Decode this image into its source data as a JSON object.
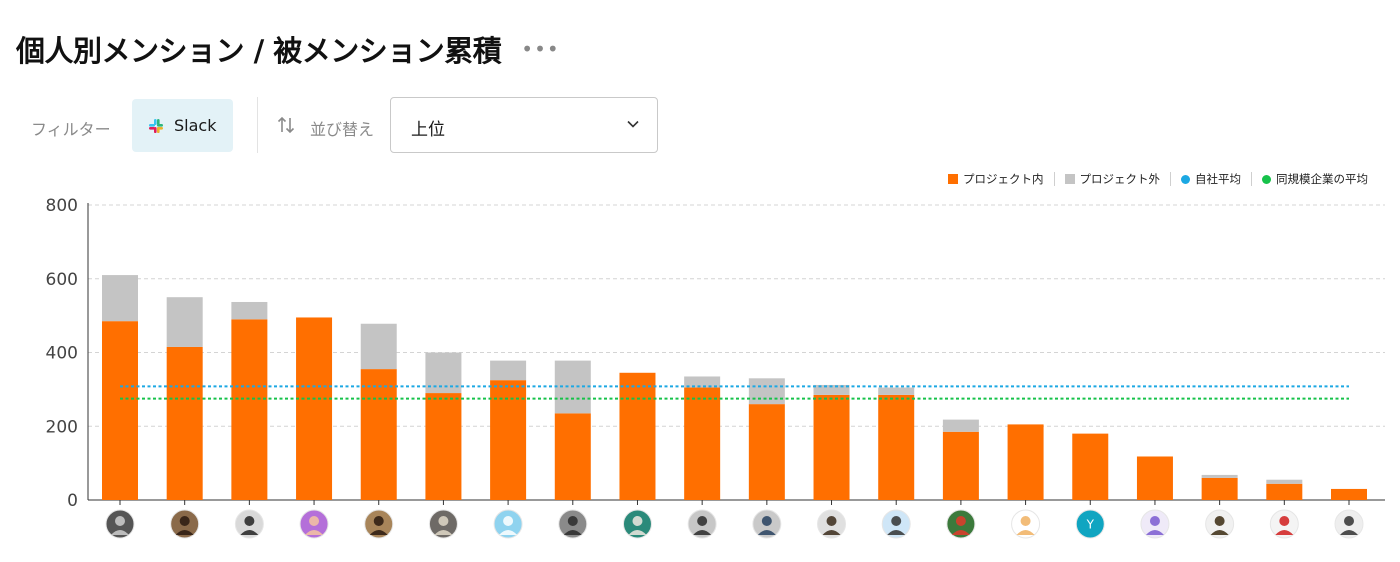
{
  "header": {
    "title": "個人別メンション / 被メンション累積",
    "more_label": "•••"
  },
  "filter": {
    "label": "フィルター",
    "chip_label": "Slack",
    "sort_label": "並び替え",
    "sort_value": "上位"
  },
  "colors": {
    "inside": "#ff6f00",
    "outside": "#c4c4c4",
    "company_avg": "#1ca8e3",
    "peer_avg": "#16c24a"
  },
  "chart_data": {
    "type": "bar",
    "stacked": true,
    "ylim": [
      0,
      800
    ],
    "yticks": [
      0,
      200,
      400,
      600,
      800
    ],
    "grid": true,
    "legend_position": "top-right",
    "categories": [
      "avatar-1",
      "avatar-2",
      "avatar-3",
      "avatar-4",
      "avatar-5",
      "avatar-6",
      "avatar-7",
      "avatar-8",
      "avatar-9",
      "avatar-10",
      "avatar-11",
      "avatar-12",
      "avatar-13",
      "avatar-14",
      "avatar-15",
      "Y",
      "avatar-17",
      "avatar-18",
      "avatar-19",
      "avatar-20"
    ],
    "series": [
      {
        "name": "プロジェクト内",
        "values": [
          485,
          415,
          490,
          495,
          355,
          290,
          325,
          235,
          345,
          305,
          260,
          285,
          285,
          185,
          205,
          180,
          118,
          60,
          44,
          30
        ]
      },
      {
        "name": "プロジェクト外",
        "values": [
          125,
          135,
          47,
          0,
          123,
          110,
          53,
          143,
          0,
          30,
          70,
          27,
          20,
          33,
          0,
          0,
          0,
          8,
          11,
          0
        ]
      }
    ],
    "reference_lines": [
      {
        "name": "自社平均",
        "value": 308
      },
      {
        "name": "同規模企業の平均",
        "value": 275
      }
    ]
  },
  "avatars": [
    {
      "label": "",
      "bg": "#555555",
      "fg": "#cfcfcf"
    },
    {
      "label": "",
      "bg": "#8a6a4a",
      "fg": "#2a1a10"
    },
    {
      "label": "",
      "bg": "#d9d9d9",
      "fg": "#222222"
    },
    {
      "label": "",
      "bg": "#b46fd9",
      "fg": "#f4c4a0"
    },
    {
      "label": "",
      "bg": "#a8855a",
      "fg": "#2a1a10"
    },
    {
      "label": "",
      "bg": "#6e6a66",
      "fg": "#e0d8c8"
    },
    {
      "label": "",
      "bg": "#8fd3ef",
      "fg": "#ffffff"
    },
    {
      "label": "",
      "bg": "#8a8a8a",
      "fg": "#2a2a2a"
    },
    {
      "label": "",
      "bg": "#2b8a7a",
      "fg": "#f0e8e0"
    },
    {
      "label": "",
      "bg": "#c7c7c7",
      "fg": "#2a2a2a"
    },
    {
      "label": "",
      "bg": "#c9c9c9",
      "fg": "#27415f"
    },
    {
      "label": "",
      "bg": "#e0e0e0",
      "fg": "#3a2a1a"
    },
    {
      "label": "",
      "bg": "#cfe6f7",
      "fg": "#333333"
    },
    {
      "label": "",
      "bg": "#3c7a3c",
      "fg": "#e23a2a"
    },
    {
      "label": "",
      "bg": "#ffffff",
      "fg": "#f0b060"
    },
    {
      "label": "Y",
      "bg": "#10a5c1",
      "fg": "#ffffff"
    },
    {
      "label": "",
      "bg": "#efeaf8",
      "fg": "#7a5ad0"
    },
    {
      "label": "",
      "bg": "#f1f1f1",
      "fg": "#3a2a10"
    },
    {
      "label": "",
      "bg": "#f4f4f4",
      "fg": "#d01c1c"
    },
    {
      "label": "",
      "bg": "#eeeeee",
      "fg": "#303030"
    }
  ]
}
